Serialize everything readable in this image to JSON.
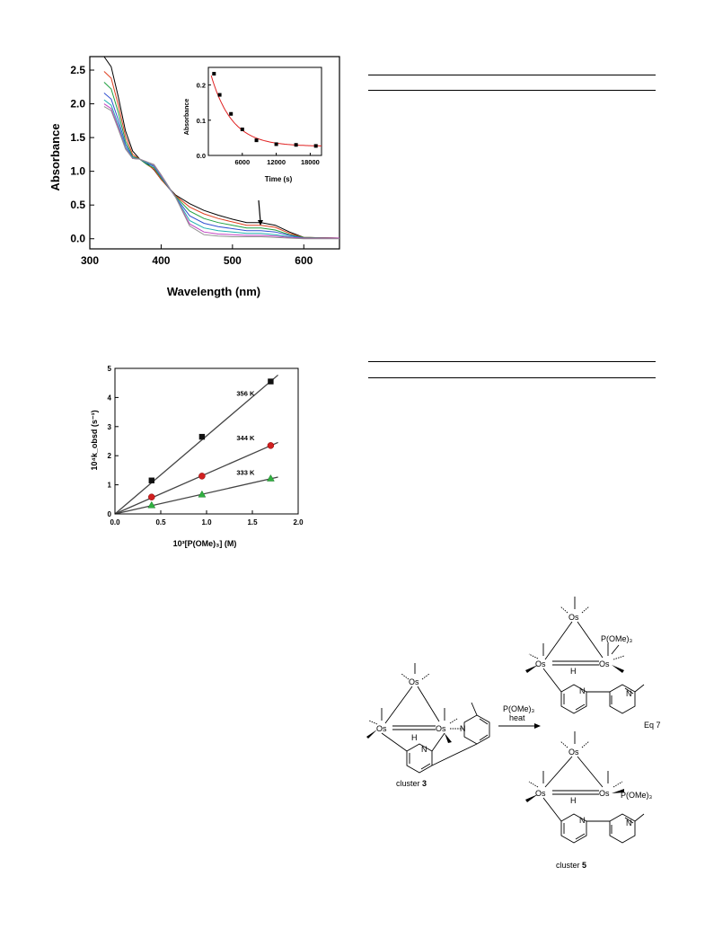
{
  "chart_data": [
    {
      "type": "line",
      "xlabel": "Wavelength (nm)",
      "ylabel": "Absorbance",
      "xlim": [
        300,
        650
      ],
      "ylim": [
        -0.15,
        2.7
      ],
      "xticks": [
        300,
        400,
        500,
        600
      ],
      "yticks": [
        0.0,
        0.5,
        1.0,
        1.5,
        2.0,
        2.5
      ],
      "series": [
        {
          "color": "#000000",
          "points": [
            [
              320,
              2.7
            ],
            [
              330,
              2.55
            ],
            [
              340,
              2.1
            ],
            [
              350,
              1.6
            ],
            [
              360,
              1.3
            ],
            [
              370,
              1.18
            ],
            [
              380,
              1.12
            ],
            [
              390,
              1.02
            ],
            [
              400,
              0.88
            ],
            [
              420,
              0.65
            ],
            [
              440,
              0.52
            ],
            [
              460,
              0.42
            ],
            [
              480,
              0.35
            ],
            [
              500,
              0.29
            ],
            [
              520,
              0.24
            ],
            [
              540,
              0.24
            ],
            [
              560,
              0.2
            ],
            [
              580,
              0.1
            ],
            [
              600,
              0.02
            ],
            [
              650,
              0.01
            ]
          ]
        },
        {
          "color": "#e04020",
          "points": [
            [
              320,
              2.48
            ],
            [
              330,
              2.38
            ],
            [
              340,
              1.98
            ],
            [
              350,
              1.52
            ],
            [
              360,
              1.25
            ],
            [
              370,
              1.18
            ],
            [
              380,
              1.1
            ],
            [
              390,
              1.03
            ],
            [
              400,
              0.88
            ],
            [
              420,
              0.64
            ],
            [
              440,
              0.47
            ],
            [
              460,
              0.37
            ],
            [
              480,
              0.3
            ],
            [
              500,
              0.25
            ],
            [
              520,
              0.2
            ],
            [
              540,
              0.2
            ],
            [
              560,
              0.17
            ],
            [
              580,
              0.08
            ],
            [
              600,
              0.02
            ],
            [
              650,
              0.01
            ]
          ]
        },
        {
          "color": "#20a040",
          "points": [
            [
              320,
              2.32
            ],
            [
              330,
              2.22
            ],
            [
              340,
              1.87
            ],
            [
              350,
              1.45
            ],
            [
              360,
              1.22
            ],
            [
              370,
              1.18
            ],
            [
              380,
              1.1
            ],
            [
              390,
              1.05
            ],
            [
              400,
              0.9
            ],
            [
              420,
              0.63
            ],
            [
              440,
              0.41
            ],
            [
              460,
              0.3
            ],
            [
              480,
              0.24
            ],
            [
              500,
              0.2
            ],
            [
              520,
              0.16
            ],
            [
              540,
              0.16
            ],
            [
              560,
              0.13
            ],
            [
              580,
              0.06
            ],
            [
              600,
              0.02
            ],
            [
              650,
              0.01
            ]
          ]
        },
        {
          "color": "#3050d0",
          "points": [
            [
              320,
              2.16
            ],
            [
              330,
              2.07
            ],
            [
              340,
              1.76
            ],
            [
              350,
              1.4
            ],
            [
              360,
              1.2
            ],
            [
              370,
              1.18
            ],
            [
              380,
              1.12
            ],
            [
              390,
              1.07
            ],
            [
              400,
              0.92
            ],
            [
              420,
              0.62
            ],
            [
              440,
              0.34
            ],
            [
              460,
              0.23
            ],
            [
              480,
              0.18
            ],
            [
              500,
              0.15
            ],
            [
              520,
              0.12
            ],
            [
              540,
              0.12
            ],
            [
              560,
              0.1
            ],
            [
              580,
              0.05
            ],
            [
              600,
              0.01
            ],
            [
              650,
              0.01
            ]
          ]
        },
        {
          "color": "#20b0b0",
          "points": [
            [
              320,
              2.06
            ],
            [
              330,
              1.98
            ],
            [
              340,
              1.69
            ],
            [
              350,
              1.36
            ],
            [
              360,
              1.19
            ],
            [
              370,
              1.18
            ],
            [
              380,
              1.13
            ],
            [
              390,
              1.08
            ],
            [
              400,
              0.93
            ],
            [
              420,
              0.62
            ],
            [
              440,
              0.27
            ],
            [
              460,
              0.16
            ],
            [
              480,
              0.12
            ],
            [
              500,
              0.1
            ],
            [
              520,
              0.08
            ],
            [
              540,
              0.08
            ],
            [
              560,
              0.06
            ],
            [
              580,
              0.03
            ],
            [
              600,
              0.01
            ],
            [
              650,
              0.01
            ]
          ]
        },
        {
          "color": "#c040c0",
          "points": [
            [
              320,
              2.0
            ],
            [
              330,
              1.93
            ],
            [
              340,
              1.65
            ],
            [
              350,
              1.34
            ],
            [
              360,
              1.19
            ],
            [
              370,
              1.18
            ],
            [
              380,
              1.14
            ],
            [
              390,
              1.09
            ],
            [
              400,
              0.94
            ],
            [
              420,
              0.62
            ],
            [
              440,
              0.22
            ],
            [
              460,
              0.1
            ],
            [
              480,
              0.07
            ],
            [
              500,
              0.06
            ],
            [
              520,
              0.05
            ],
            [
              540,
              0.05
            ],
            [
              560,
              0.04
            ],
            [
              580,
              0.02
            ],
            [
              600,
              0.01
            ],
            [
              650,
              0.01
            ]
          ]
        },
        {
          "color": "#909090",
          "points": [
            [
              320,
              1.96
            ],
            [
              330,
              1.9
            ],
            [
              340,
              1.62
            ],
            [
              350,
              1.33
            ],
            [
              360,
              1.19
            ],
            [
              370,
              1.18
            ],
            [
              380,
              1.14
            ],
            [
              390,
              1.1
            ],
            [
              400,
              0.95
            ],
            [
              420,
              0.62
            ],
            [
              440,
              0.19
            ],
            [
              460,
              0.06
            ],
            [
              480,
              0.04
            ],
            [
              500,
              0.03
            ],
            [
              520,
              0.03
            ],
            [
              540,
              0.03
            ],
            [
              560,
              0.02
            ],
            [
              580,
              0.01
            ],
            [
              600,
              0.0
            ],
            [
              650,
              0.0
            ]
          ]
        }
      ],
      "inset": {
        "type": "scatter",
        "xlabel": "Time (s)",
        "ylabel": "Absorbance",
        "xlim": [
          0,
          20000
        ],
        "ylim": [
          0,
          0.25
        ],
        "xticks": [
          6000,
          12000,
          18000
        ],
        "yticks": [
          0.0,
          0.1,
          0.2
        ],
        "marker_color": "#000000",
        "fit_color": "#e02020",
        "x": [
          1000,
          2000,
          4000,
          6000,
          8500,
          12000,
          15500,
          19000
        ],
        "y": [
          0.232,
          0.172,
          0.118,
          0.074,
          0.043,
          0.032,
          0.03,
          0.027
        ]
      }
    },
    {
      "type": "scatter",
      "xlabel": "10³[P(OMe)₃] (M)",
      "ylabel": "10⁴k_obsd (s⁻¹)",
      "xlim": [
        0,
        2.0
      ],
      "ylim": [
        0,
        5
      ],
      "xticks": [
        "0.0",
        "0.5",
        "1.0",
        "1.5",
        "2.0"
      ],
      "yticks": [
        0,
        1,
        2,
        3,
        4,
        5
      ],
      "series": [
        {
          "name": "356 K",
          "marker": "square",
          "color": "#111111",
          "x": [
            0.4,
            0.95,
            1.7
          ],
          "y": [
            1.15,
            2.65,
            4.55
          ],
          "slope": 2.68
        },
        {
          "name": "344 K",
          "marker": "circle",
          "color": "#d02020",
          "x": [
            0.4,
            0.95,
            1.7
          ],
          "y": [
            0.58,
            1.3,
            2.35
          ],
          "slope": 1.38
        },
        {
          "name": "333 K",
          "marker": "triangle",
          "color": "#30b040",
          "x": [
            0.4,
            0.95,
            1.7
          ],
          "y": [
            0.3,
            0.67,
            1.22
          ],
          "slope": 0.71
        }
      ]
    }
  ],
  "scheme": {
    "reagent": "P(OMe)₃",
    "condition": "heat",
    "start_label": "cluster",
    "start_number": "3",
    "product_label": "cluster",
    "product_number": "5",
    "eq_label": "Eq 7",
    "atoms": {
      "os": "Os",
      "h": "H",
      "n": "N",
      "phosphite": "P(OMe)₃"
    }
  }
}
